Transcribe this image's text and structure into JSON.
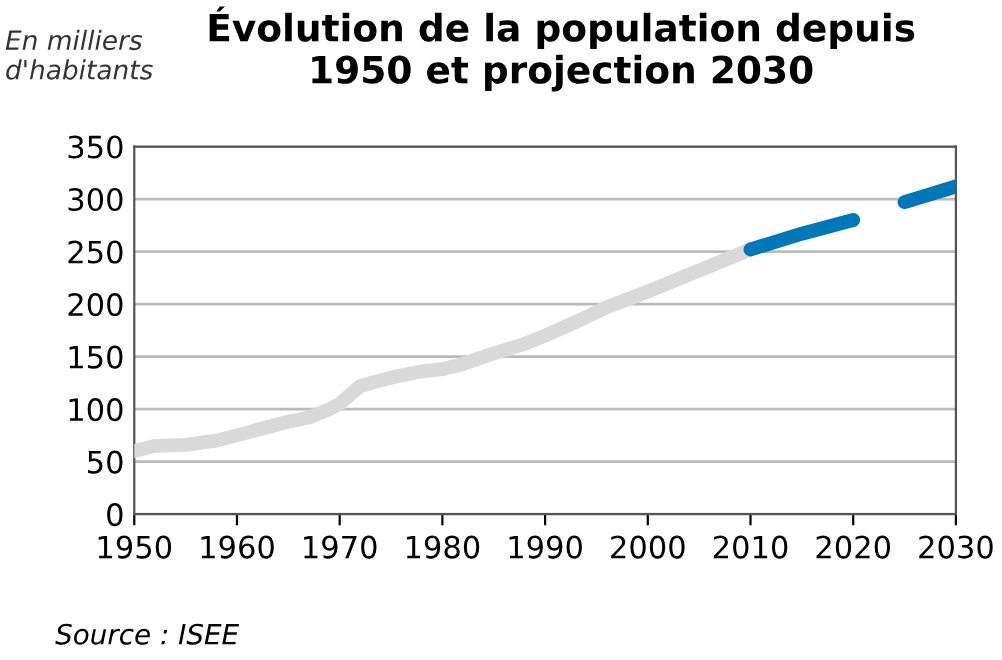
{
  "chart_data": {
    "type": "line",
    "title": "Évolution de la population depuis\n1950 et projection 2030",
    "ylabel": "En milliers\nd'habitants",
    "series": [
      {
        "color": "#d9d9d9",
        "x": [
          1950,
          1952,
          1955,
          1958,
          1960,
          1963,
          1965,
          1967,
          1969,
          1970,
          1972,
          1975,
          1978,
          1980,
          1982,
          1985,
          1988,
          1990,
          1993,
          1996,
          2000,
          2005,
          2010
        ],
        "values": [
          60,
          65,
          66,
          70,
          75,
          83,
          88,
          92,
          100,
          105,
          122,
          130,
          136,
          138,
          143,
          153,
          162,
          170,
          183,
          197,
          212,
          232,
          252
        ]
      },
      {
        "color": "#0077b6",
        "x": [
          2010,
          2015,
          2020,
          2022,
          2025,
          2030
        ],
        "values": [
          252,
          267,
          280,
          null,
          297,
          312
        ]
      }
    ],
    "xlim": [
      1950,
      2030
    ],
    "xticks": [
      1950,
      1960,
      1970,
      1980,
      1990,
      2000,
      2010,
      2020,
      2030
    ],
    "ylim": [
      0,
      350
    ],
    "yticks": [
      0,
      50,
      100,
      150,
      200,
      250,
      300,
      350
    ],
    "grid": "y",
    "line_style": "solid",
    "marker": "none",
    "annotations": [
      "Source : ISEE"
    ]
  }
}
